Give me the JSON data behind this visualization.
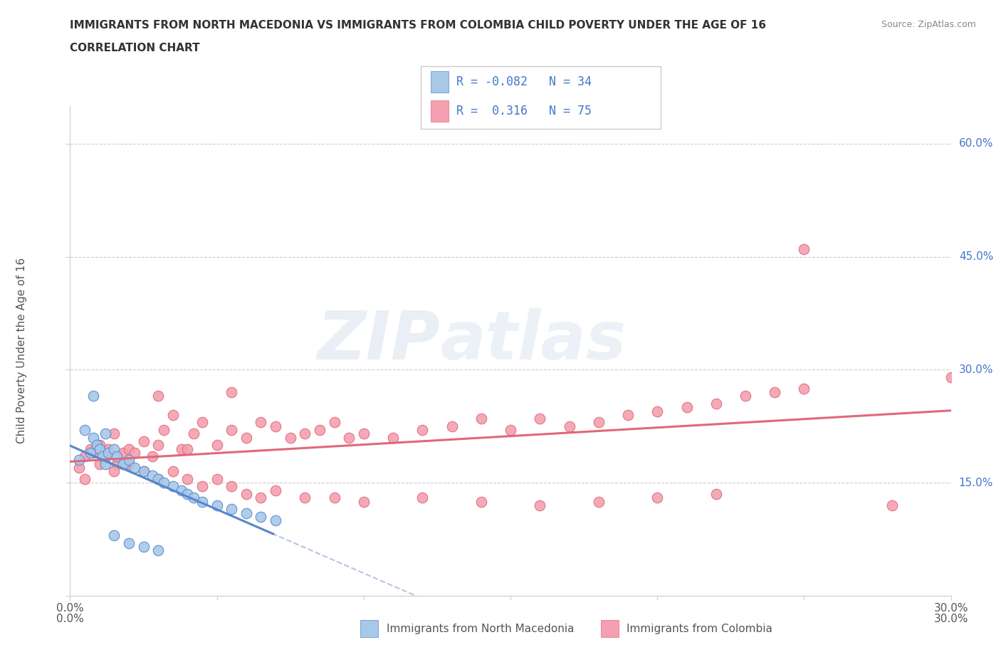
{
  "title_line1": "IMMIGRANTS FROM NORTH MACEDONIA VS IMMIGRANTS FROM COLOMBIA CHILD POVERTY UNDER THE AGE OF 16",
  "title_line2": "CORRELATION CHART",
  "source_text": "Source: ZipAtlas.com",
  "ylabel": "Child Poverty Under the Age of 16",
  "xlim": [
    0.0,
    0.3
  ],
  "ylim": [
    0.0,
    0.65
  ],
  "xticks": [
    0.0,
    0.05,
    0.1,
    0.15,
    0.2,
    0.25,
    0.3
  ],
  "yticks": [
    0.0,
    0.15,
    0.3,
    0.45,
    0.6
  ],
  "xtick_labels": [
    "0.0%",
    "",
    "",
    "",
    "",
    "",
    "30.0%"
  ],
  "ytick_labels": [
    "",
    "15.0%",
    "30.0%",
    "45.0%",
    "60.0%"
  ],
  "color_blue": "#a8c8e8",
  "color_pink": "#f4a0b0",
  "line_blue": "#5588cc",
  "line_pink": "#e06878",
  "r_blue": -0.082,
  "n_blue": 34,
  "r_pink": 0.316,
  "n_pink": 75,
  "legend_label_blue": "Immigrants from North Macedonia",
  "legend_label_pink": "Immigrants from Colombia",
  "watermark_zip": "ZIP",
  "watermark_atlas": "atlas",
  "blue_scatter_x": [
    0.003,
    0.005,
    0.007,
    0.008,
    0.009,
    0.01,
    0.011,
    0.012,
    0.013,
    0.015,
    0.016,
    0.018,
    0.02,
    0.022,
    0.025,
    0.028,
    0.03,
    0.032,
    0.035,
    0.038,
    0.04,
    0.042,
    0.045,
    0.05,
    0.055,
    0.06,
    0.065,
    0.07,
    0.008,
    0.012,
    0.015,
    0.02,
    0.025,
    0.03
  ],
  "blue_scatter_y": [
    0.18,
    0.22,
    0.19,
    0.21,
    0.2,
    0.195,
    0.185,
    0.175,
    0.19,
    0.195,
    0.185,
    0.175,
    0.18,
    0.17,
    0.165,
    0.16,
    0.155,
    0.15,
    0.145,
    0.14,
    0.135,
    0.13,
    0.125,
    0.12,
    0.115,
    0.11,
    0.105,
    0.1,
    0.265,
    0.215,
    0.08,
    0.07,
    0.065,
    0.06
  ],
  "pink_scatter_x": [
    0.003,
    0.005,
    0.007,
    0.008,
    0.01,
    0.012,
    0.013,
    0.015,
    0.016,
    0.018,
    0.02,
    0.022,
    0.025,
    0.028,
    0.03,
    0.032,
    0.035,
    0.038,
    0.04,
    0.042,
    0.045,
    0.05,
    0.055,
    0.06,
    0.065,
    0.07,
    0.075,
    0.08,
    0.085,
    0.09,
    0.095,
    0.1,
    0.11,
    0.12,
    0.13,
    0.14,
    0.15,
    0.16,
    0.17,
    0.18,
    0.19,
    0.2,
    0.21,
    0.22,
    0.23,
    0.24,
    0.25,
    0.005,
    0.01,
    0.015,
    0.02,
    0.025,
    0.03,
    0.035,
    0.04,
    0.045,
    0.05,
    0.055,
    0.06,
    0.065,
    0.07,
    0.08,
    0.09,
    0.1,
    0.12,
    0.14,
    0.16,
    0.18,
    0.2,
    0.22,
    0.25,
    0.28,
    0.3,
    0.03,
    0.055
  ],
  "pink_scatter_y": [
    0.17,
    0.185,
    0.195,
    0.19,
    0.2,
    0.185,
    0.195,
    0.215,
    0.175,
    0.19,
    0.195,
    0.19,
    0.205,
    0.185,
    0.2,
    0.22,
    0.24,
    0.195,
    0.195,
    0.215,
    0.23,
    0.2,
    0.22,
    0.21,
    0.23,
    0.225,
    0.21,
    0.215,
    0.22,
    0.23,
    0.21,
    0.215,
    0.21,
    0.22,
    0.225,
    0.235,
    0.22,
    0.235,
    0.225,
    0.23,
    0.24,
    0.245,
    0.25,
    0.255,
    0.265,
    0.27,
    0.275,
    0.155,
    0.175,
    0.165,
    0.175,
    0.165,
    0.155,
    0.165,
    0.155,
    0.145,
    0.155,
    0.145,
    0.135,
    0.13,
    0.14,
    0.13,
    0.13,
    0.125,
    0.13,
    0.125,
    0.12,
    0.125,
    0.13,
    0.135,
    0.46,
    0.12,
    0.29,
    0.265,
    0.27
  ]
}
